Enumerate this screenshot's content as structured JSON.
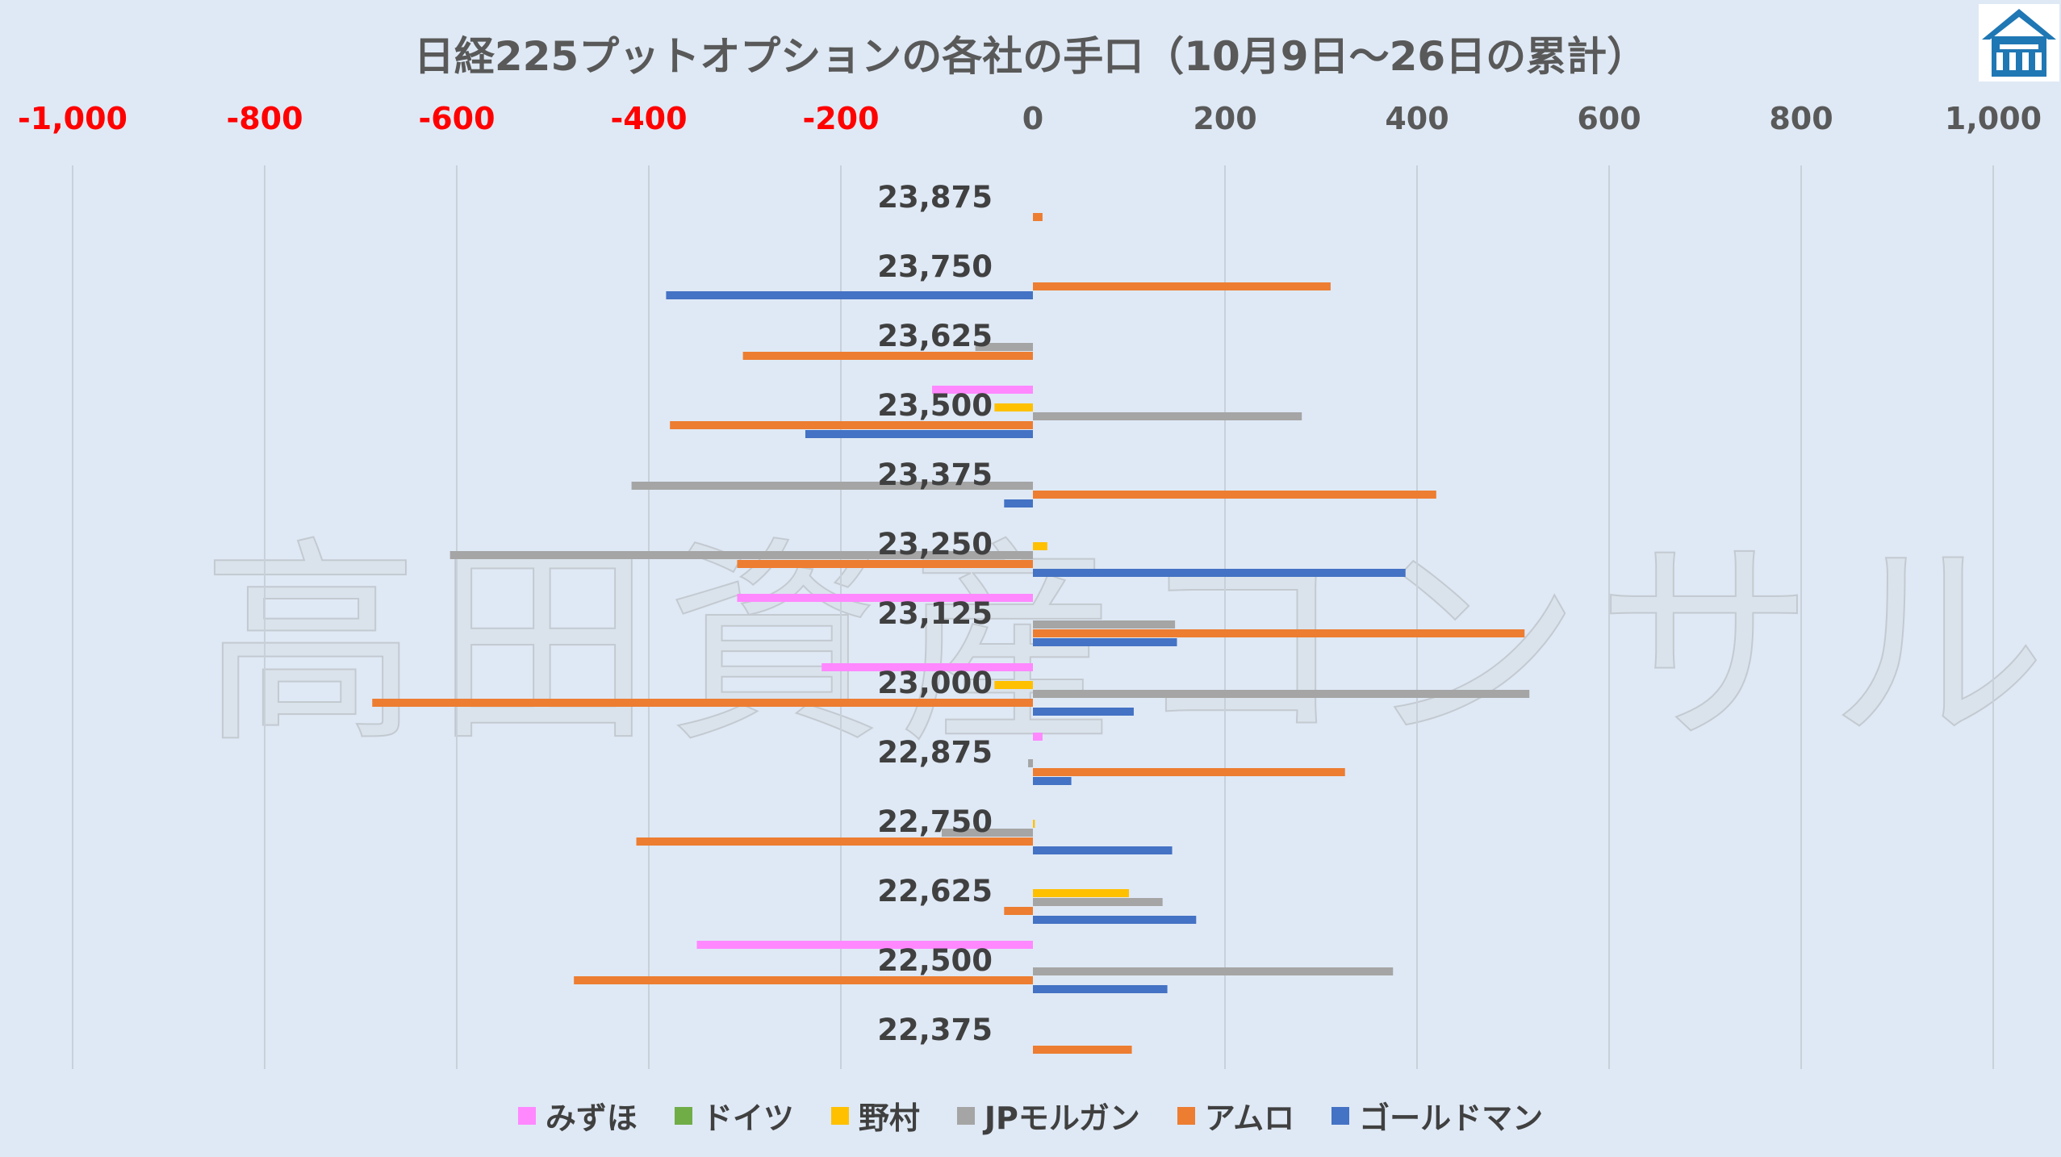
{
  "watermark": "高田資産コンサル",
  "chart_data": {
    "type": "bar",
    "orientation": "horizontal",
    "title": "日経225プットオプションの各社の手口（10月9日～26日の累計）",
    "xlim": [
      -1000,
      1000
    ],
    "x_ticks": [
      {
        "value": -1000,
        "label": "-1,000"
      },
      {
        "value": -800,
        "label": "-800"
      },
      {
        "value": -600,
        "label": "-600"
      },
      {
        "value": -400,
        "label": "-400"
      },
      {
        "value": -200,
        "label": "-200"
      },
      {
        "value": 0,
        "label": "0"
      },
      {
        "value": 200,
        "label": "200"
      },
      {
        "value": 400,
        "label": "400"
      },
      {
        "value": 600,
        "label": "600"
      },
      {
        "value": 800,
        "label": "800"
      },
      {
        "value": 1000,
        "label": "1,000"
      }
    ],
    "negative_tick_color": "#ff0000",
    "positive_tick_color": "#595959",
    "grid": true,
    "legend_position": "bottom",
    "categories": [
      "23,875",
      "23,750",
      "23,625",
      "23,500",
      "23,375",
      "23,250",
      "23,125",
      "23,000",
      "22,875",
      "22,750",
      "22,625",
      "22,500",
      "22,375"
    ],
    "series": [
      {
        "name": "みずほ",
        "color": "#ff88ff",
        "values": [
          0,
          0,
          0,
          -105,
          0,
          0,
          -308,
          -220,
          10,
          0,
          0,
          -350,
          0
        ]
      },
      {
        "name": "ドイツ",
        "color": "#70ad47",
        "values": [
          0,
          0,
          0,
          0,
          0,
          0,
          0,
          0,
          0,
          0,
          0,
          0,
          0
        ]
      },
      {
        "name": "野村",
        "color": "#ffc000",
        "values": [
          0,
          0,
          0,
          -40,
          0,
          15,
          0,
          -40,
          0,
          2,
          100,
          0,
          0
        ]
      },
      {
        "name": "JPモルガン",
        "color": "#a5a5a5",
        "values": [
          0,
          0,
          -60,
          280,
          -418,
          -607,
          148,
          517,
          -5,
          -95,
          135,
          375,
          0
        ]
      },
      {
        "name": "アムロ",
        "color": "#ed7d31",
        "values": [
          10,
          310,
          -302,
          -378,
          420,
          -308,
          512,
          -688,
          325,
          -413,
          -30,
          -478,
          103
        ]
      },
      {
        "name": "ゴールドマン",
        "color": "#4472c4",
        "values": [
          0,
          -382,
          0,
          -237,
          -30,
          388,
          150,
          105,
          40,
          145,
          170,
          140,
          0
        ]
      }
    ]
  }
}
